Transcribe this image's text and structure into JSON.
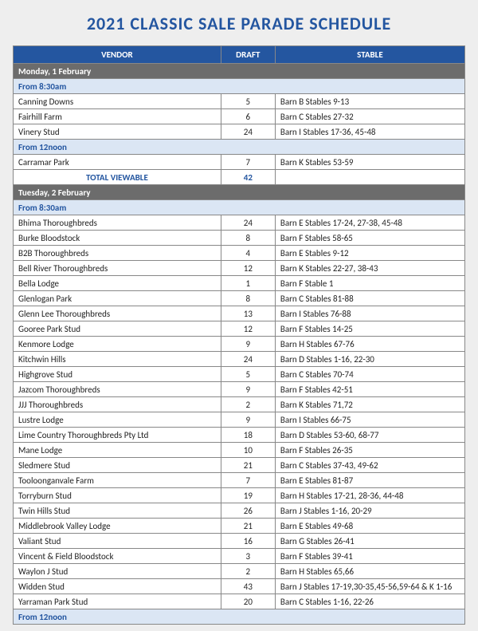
{
  "title": "2021 CLASSIC SALE PARADE SCHEDULE",
  "columns": {
    "vendor": "VENDOR",
    "draft": "DRAFT",
    "stable": "STABLE"
  },
  "rows": [
    {
      "type": "day",
      "label": "Monday, 1 February"
    },
    {
      "type": "time",
      "label": "From 8:30am"
    },
    {
      "type": "data",
      "vendor": "Canning Downs",
      "draft": "5",
      "stable": "Barn B Stables 9-13"
    },
    {
      "type": "data",
      "vendor": "Fairhill Farm",
      "draft": "6",
      "stable": "Barn C Stables 27-32"
    },
    {
      "type": "data",
      "vendor": "Vinery Stud",
      "draft": "24",
      "stable": "Barn I Stables 17-36, 45-48"
    },
    {
      "type": "time",
      "label": "From 12noon"
    },
    {
      "type": "data",
      "vendor": "Carramar Park",
      "draft": "7",
      "stable": "Barn K Stables 53-59"
    },
    {
      "type": "total",
      "label": "TOTAL VIEWABLE",
      "draft": "42"
    },
    {
      "type": "day",
      "label": "Tuesday, 2 February"
    },
    {
      "type": "time",
      "label": "From 8:30am"
    },
    {
      "type": "data",
      "vendor": "Bhima Thoroughbreds",
      "draft": "24",
      "stable": "Barn E Stables 17-24, 27-38, 45-48"
    },
    {
      "type": "data",
      "vendor": "Burke Bloodstock",
      "draft": "8",
      "stable": "Barn F Stables 58-65"
    },
    {
      "type": "data",
      "vendor": "B2B Thoroughbreds",
      "draft": "4",
      "stable": "Barn E Stables 9-12"
    },
    {
      "type": "data",
      "vendor": "Bell River Thoroughbreds",
      "draft": "12",
      "stable": "Barn K Stables 22-27, 38-43"
    },
    {
      "type": "data",
      "vendor": "Bella Lodge",
      "draft": "1",
      "stable": "Barn F Stable 1"
    },
    {
      "type": "data",
      "vendor": "Glenlogan Park",
      "draft": "8",
      "stable": "Barn C Stables 81-88"
    },
    {
      "type": "data",
      "vendor": "Glenn Lee Thoroughbreds",
      "draft": "13",
      "stable": "Barn I Stables 76-88"
    },
    {
      "type": "data",
      "vendor": "Gooree Park Stud",
      "draft": "12",
      "stable": "Barn F Stables 14-25"
    },
    {
      "type": "data",
      "vendor": "Kenmore Lodge",
      "draft": "9",
      "stable": "Barn H Stables 67-76"
    },
    {
      "type": "data",
      "vendor": "Kitchwin Hills",
      "draft": "24",
      "stable": "Barn D Stables 1-16, 22-30"
    },
    {
      "type": "data",
      "vendor": "Highgrove Stud",
      "draft": "5",
      "stable": "Barn C Stables 70-74"
    },
    {
      "type": "data",
      "vendor": "Jazcom Thoroughbreds",
      "draft": "9",
      "stable": "Barn F Stables 42-51"
    },
    {
      "type": "data",
      "vendor": "JJJ Thoroughbreds",
      "draft": "2",
      "stable": "Barn K Stables 71,72"
    },
    {
      "type": "data",
      "vendor": "Lustre Lodge",
      "draft": "9",
      "stable": "Barn I Stables 66-75"
    },
    {
      "type": "data",
      "vendor": "Lime Country Thoroughbreds Pty Ltd",
      "draft": "18",
      "stable": "Barn D Stables 53-60, 68-77"
    },
    {
      "type": "data",
      "vendor": "Mane Lodge",
      "draft": "10",
      "stable": "Barn F Stables 26-35"
    },
    {
      "type": "data",
      "vendor": "Sledmere Stud",
      "draft": "21",
      "stable": "Barn C Stables 37-43, 49-62"
    },
    {
      "type": "data",
      "vendor": "Tooloonganvale Farm",
      "draft": "7",
      "stable": "Barn E Stables 81-87"
    },
    {
      "type": "data",
      "vendor": "Torryburn Stud",
      "draft": "19",
      "stable": "Barn H Stables 17-21, 28-36, 44-48"
    },
    {
      "type": "data",
      "vendor": "Twin Hills Stud",
      "draft": "26",
      "stable": "Barn J Stables 1-16, 20-29"
    },
    {
      "type": "data",
      "vendor": "Middlebrook Valley Lodge",
      "draft": "21",
      "stable": "Barn E Stables 49-68"
    },
    {
      "type": "data",
      "vendor": "Valiant Stud",
      "draft": "16",
      "stable": "Barn G Stables 26-41"
    },
    {
      "type": "data",
      "vendor": "Vincent & Field Bloodstock",
      "draft": "3",
      "stable": "Barn F Stables 39-41"
    },
    {
      "type": "data",
      "vendor": "Waylon J Stud",
      "draft": "2",
      "stable": "Barn H Stables 65,66"
    },
    {
      "type": "data",
      "vendor": "Widden Stud",
      "draft": "43",
      "stable": "Barn J Stables 17-19,30-35,45-56,59-64 & K 1-16"
    },
    {
      "type": "data",
      "vendor": "Yarraman Park Stud",
      "draft": "20",
      "stable": "Barn C Stables 1-16, 22-26"
    },
    {
      "type": "time",
      "label": "From 12noon"
    }
  ]
}
